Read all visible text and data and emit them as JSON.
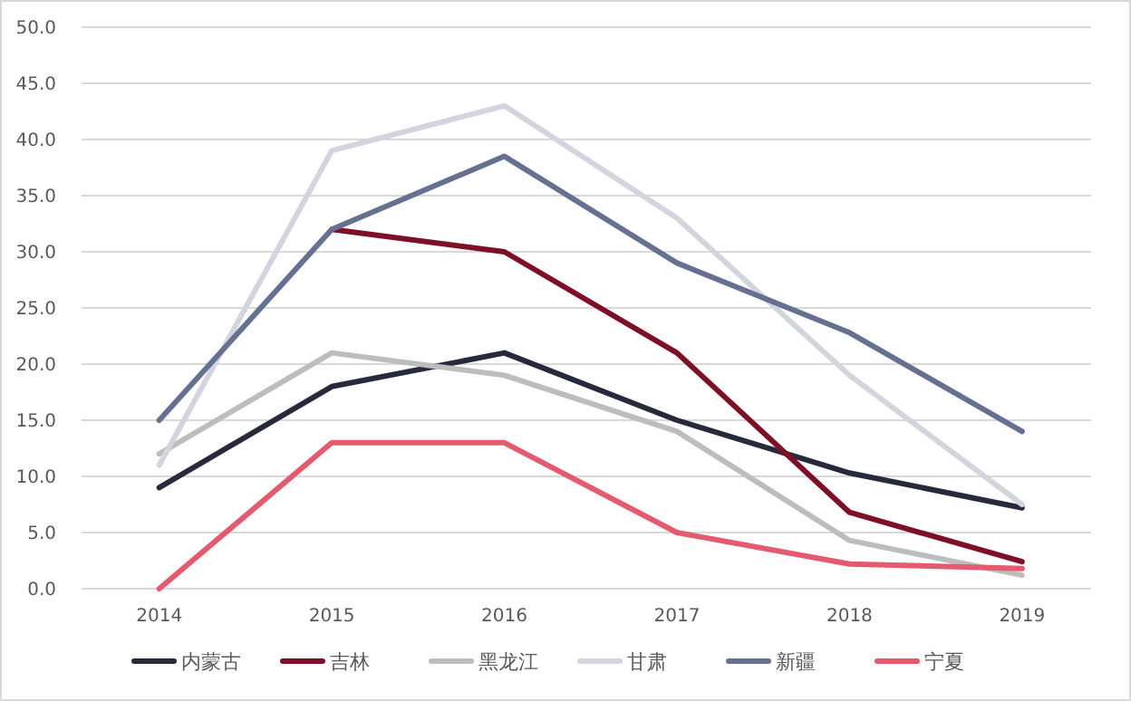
{
  "chart_data": {
    "type": "line",
    "x": [
      2014,
      2015,
      2016,
      2017,
      2018,
      2019
    ],
    "xlim": [
      2013.55,
      2019.4
    ],
    "xticks": [
      2014,
      2015,
      2016,
      2017,
      2018,
      2019
    ],
    "ylim": [
      0,
      50
    ],
    "yticks": [
      {
        "value": 0,
        "label": "0.0"
      },
      {
        "value": 5,
        "label": "5.0"
      },
      {
        "value": 10,
        "label": "10.0"
      },
      {
        "value": 15,
        "label": "15.0"
      },
      {
        "value": 20,
        "label": "20.0"
      },
      {
        "value": 25,
        "label": "25.0"
      },
      {
        "value": 30,
        "label": "30.0"
      },
      {
        "value": 35,
        "label": "35.0"
      },
      {
        "value": 40,
        "label": "40.0"
      },
      {
        "value": 45,
        "label": "45.0"
      },
      {
        "value": 50,
        "label": "50.0"
      }
    ],
    "grid": "y",
    "legend": "bottom",
    "marker": "none",
    "line_style": "solid",
    "series": [
      {
        "name": "内蒙古",
        "color": "#262a3b",
        "values": [
          9,
          18,
          21,
          15,
          10.3,
          7.2
        ]
      },
      {
        "name": "吉林",
        "color": "#7d1027",
        "values": [
          null,
          32,
          30,
          21,
          6.8,
          2.4
        ]
      },
      {
        "name": "黑龙江",
        "color": "#bdbdbd",
        "values": [
          12,
          21,
          19,
          14,
          4.3,
          1.2
        ]
      },
      {
        "name": "甘肃",
        "color": "#d3d5de",
        "values": [
          11,
          39,
          43,
          33,
          19,
          7.5
        ]
      },
      {
        "name": "新疆",
        "color": "#667192",
        "values": [
          15,
          32,
          38.5,
          29,
          22.8,
          14
        ]
      },
      {
        "name": "宁夏",
        "color": "#e45a6f",
        "values": [
          0,
          13,
          13,
          5,
          2.2,
          1.8
        ]
      }
    ]
  }
}
